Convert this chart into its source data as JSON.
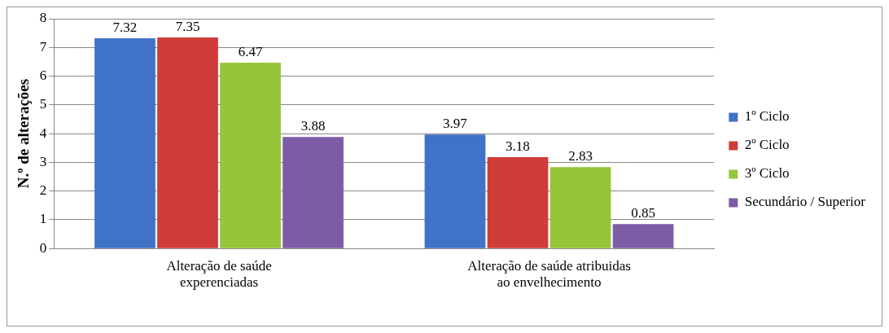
{
  "chart_data": {
    "type": "bar",
    "ylabel": "N.º de alterações",
    "categories": [
      "Alteração de saúde experenciadas",
      "Alteração de saúde atribuidas ao envelhecimento"
    ],
    "series": [
      {
        "name": "1º Ciclo",
        "color": "#3f73c8",
        "values": [
          7.32,
          3.97
        ]
      },
      {
        "name": "2º Ciclo",
        "color": "#d03c3a",
        "values": [
          7.35,
          3.18
        ]
      },
      {
        "name": "3º Ciclo",
        "color": "#96c43a",
        "values": [
          6.47,
          2.83
        ]
      },
      {
        "name": "Secundário / Superior",
        "color": "#7d5ca6",
        "values": [
          3.88,
          0.85
        ]
      }
    ],
    "ylim": [
      0,
      8
    ],
    "yticks": [
      0,
      1,
      2,
      3,
      4,
      5,
      6,
      7,
      8
    ],
    "grid": "y",
    "legend": "right",
    "data_labels": true
  }
}
